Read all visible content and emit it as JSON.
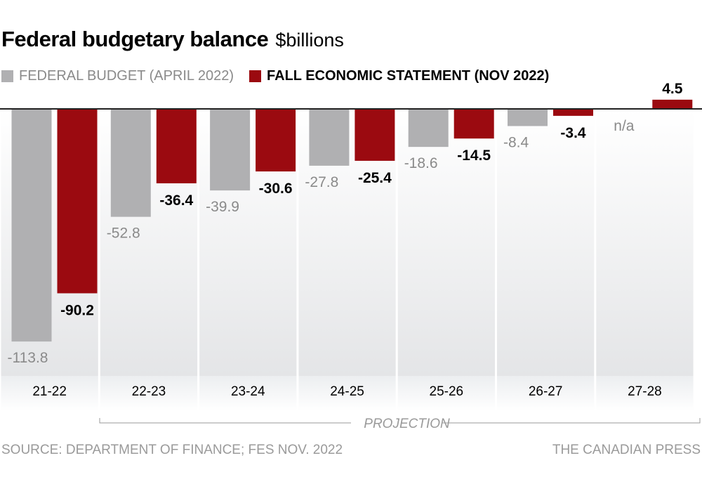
{
  "header": {
    "title": "Federal budgetary balance",
    "unit": "$billions"
  },
  "legend": [
    {
      "label": "FEDERAL BUDGET (APRIL 2022)",
      "color": "#b0b0b2"
    },
    {
      "label": "FALL ECONOMIC STATEMENT (NOV 2022)",
      "color": "#9b0a10"
    }
  ],
  "footer": {
    "source": "SOURCE: DEPARTMENT OF FINANCE; FES NOV. 2022",
    "credit": "THE CANADIAN PRESS"
  },
  "chart_data": {
    "type": "bar",
    "title": "Federal budgetary balance",
    "ylabel": "$billions",
    "xlabel": "",
    "categories": [
      "21-22",
      "22-23",
      "23-24",
      "24-25",
      "25-26",
      "26-27",
      "27-28"
    ],
    "series": [
      {
        "name": "FEDERAL BUDGET (APRIL 2022)",
        "color": "#b0b0b2",
        "values": [
          -113.8,
          -52.8,
          -39.9,
          -27.8,
          -18.6,
          -8.4,
          null
        ],
        "labels": [
          "-113.8",
          "-52.8",
          "-39.9",
          "-27.8",
          "-18.6",
          "-8.4",
          "n/a"
        ]
      },
      {
        "name": "FALL ECONOMIC STATEMENT (NOV 2022)",
        "color": "#9b0a10",
        "values": [
          -90.2,
          -36.4,
          -30.6,
          -25.4,
          -14.5,
          -3.4,
          4.5
        ],
        "labels": [
          "-90.2",
          "-36.4",
          "-30.6",
          "-25.4",
          "-14.5",
          "-3.4",
          "4.5"
        ]
      }
    ],
    "ylim": [
      -120,
      5
    ],
    "grid": false,
    "legend_position": "top-left",
    "annotation": {
      "label": "PROJECTION",
      "from": "22-23",
      "to": "27-28"
    }
  }
}
